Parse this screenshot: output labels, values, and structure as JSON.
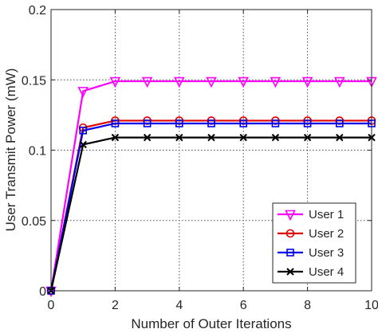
{
  "chart_data": {
    "type": "line",
    "title": "",
    "xlabel": "Number of Outer Iterations",
    "ylabel": "User Transmit Power (mW)",
    "xlim": [
      0,
      10
    ],
    "ylim": [
      0,
      0.2
    ],
    "xticks": [
      0,
      2,
      4,
      6,
      8,
      10
    ],
    "yticks": [
      0,
      0.05,
      0.1,
      0.15,
      0.2
    ],
    "xtick_labels": [
      "0",
      "2",
      "4",
      "6",
      "8",
      "10"
    ],
    "ytick_labels": [
      "0",
      "0.05",
      "0.1",
      "0.15",
      "0.2"
    ],
    "grid": true,
    "legend_position": "bottom-right",
    "x": [
      0,
      1,
      2,
      3,
      4,
      5,
      6,
      7,
      8,
      9,
      10
    ],
    "series": [
      {
        "name": "User 1",
        "color": "#ff00ff",
        "marker": "triangle-down",
        "values": [
          0,
          0.142,
          0.149,
          0.149,
          0.149,
          0.149,
          0.149,
          0.149,
          0.149,
          0.149,
          0.149
        ]
      },
      {
        "name": "User 2",
        "color": "#e00000",
        "marker": "circle",
        "values": [
          0,
          0.116,
          0.121,
          0.121,
          0.121,
          0.121,
          0.121,
          0.121,
          0.121,
          0.121,
          0.121
        ]
      },
      {
        "name": "User 3",
        "color": "#0000ee",
        "marker": "square",
        "values": [
          0,
          0.114,
          0.119,
          0.119,
          0.119,
          0.119,
          0.119,
          0.119,
          0.119,
          0.119,
          0.119
        ]
      },
      {
        "name": "User 4",
        "color": "#000000",
        "marker": "x",
        "values": [
          0,
          0.104,
          0.109,
          0.109,
          0.109,
          0.109,
          0.109,
          0.109,
          0.109,
          0.109,
          0.109
        ]
      }
    ]
  }
}
